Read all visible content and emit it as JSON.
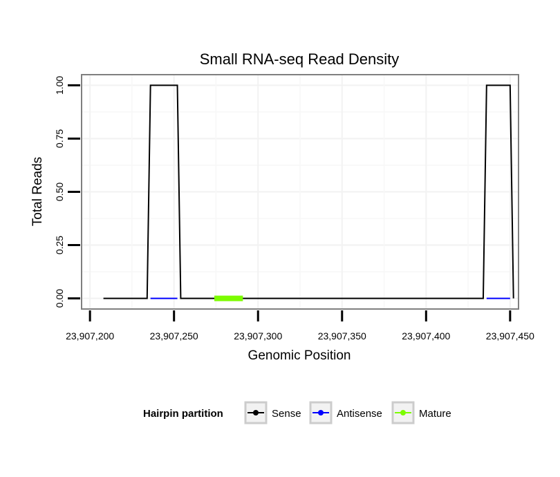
{
  "chart_data": {
    "type": "line",
    "title": "Small RNA-seq Read Density",
    "xlabel": "Genomic Position",
    "ylabel": "Total Reads",
    "xlim": [
      23907195,
      23907455
    ],
    "ylim": [
      -0.05,
      1.05
    ],
    "xticks": [
      23907200,
      23907250,
      23907300,
      23907350,
      23907400,
      23907450
    ],
    "xtick_labels": [
      "23,907,200",
      "23,907,250",
      "23,907,300",
      "23,907,350",
      "23,907,400",
      "23,907,450"
    ],
    "yticks": [
      0,
      0.25,
      0.5,
      0.75,
      1.0
    ],
    "ytick_labels": [
      "0.00",
      "0.25",
      "0.50",
      "0.75",
      "1.00"
    ],
    "grid": true,
    "legend": {
      "title": "Hairpin partition",
      "position": "bottom",
      "entries": [
        {
          "name": "Sense",
          "color": "#000000"
        },
        {
          "name": "Antisense",
          "color": "#0000ff"
        },
        {
          "name": "Mature",
          "color": "#7cfc00"
        }
      ]
    },
    "series": [
      {
        "name": "Sense",
        "color": "#000000",
        "x": [
          23907208,
          23907234,
          23907236,
          23907252,
          23907254,
          23907434,
          23907436,
          23907450,
          23907452
        ],
        "values": [
          0,
          0,
          1,
          1,
          0,
          0,
          1,
          1,
          0
        ]
      },
      {
        "name": "Antisense",
        "color": "#0000ff",
        "segments": [
          [
            23907236,
            23907252
          ],
          [
            23907436,
            23907450
          ]
        ],
        "value": 0
      },
      {
        "name": "Mature",
        "color": "#7cfc00",
        "segments": [
          [
            23907274,
            23907291
          ]
        ],
        "value": 0
      }
    ]
  }
}
